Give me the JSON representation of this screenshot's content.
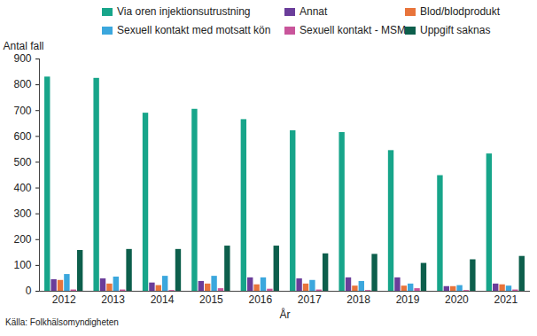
{
  "chart_data": {
    "type": "bar",
    "y_label": "Antal fall",
    "x_label": "År",
    "caption": "Källa: Folkhälsomyndigheten",
    "categories": [
      "2012",
      "2013",
      "2014",
      "2015",
      "2016",
      "2017",
      "2018",
      "2019",
      "2020",
      "2021"
    ],
    "series": [
      {
        "name": "Via oren injektionsutrustning",
        "color": "#17a58a",
        "values": [
          830,
          825,
          690,
          705,
          665,
          622,
          615,
          545,
          448,
          532
        ]
      },
      {
        "name": "Annat",
        "color": "#6a3d9a",
        "values": [
          45,
          48,
          32,
          38,
          52,
          48,
          52,
          52,
          18,
          28
        ]
      },
      {
        "name": "Blod/blodprodukt",
        "color": "#e8743b",
        "values": [
          42,
          28,
          22,
          28,
          25,
          28,
          20,
          20,
          18,
          25
        ]
      },
      {
        "name": "Sexuell kontakt med motsatt kön",
        "color": "#3ba7dd",
        "values": [
          65,
          55,
          58,
          58,
          52,
          42,
          38,
          28,
          22,
          20
        ]
      },
      {
        "name": "Sexuell kontakt - MSM",
        "color": "#c9559b",
        "values": [
          5,
          5,
          3,
          10,
          8,
          5,
          3,
          10,
          3,
          5
        ]
      },
      {
        "name": "Uppgift saknas",
        "color": "#0d5f4c",
        "values": [
          158,
          162,
          162,
          175,
          175,
          145,
          143,
          108,
          122,
          135
        ]
      }
    ],
    "ylim": [
      0,
      900
    ],
    "yticks": [
      0,
      100,
      200,
      300,
      400,
      500,
      600,
      700,
      800,
      900
    ],
    "grid": false,
    "legend": "top"
  }
}
